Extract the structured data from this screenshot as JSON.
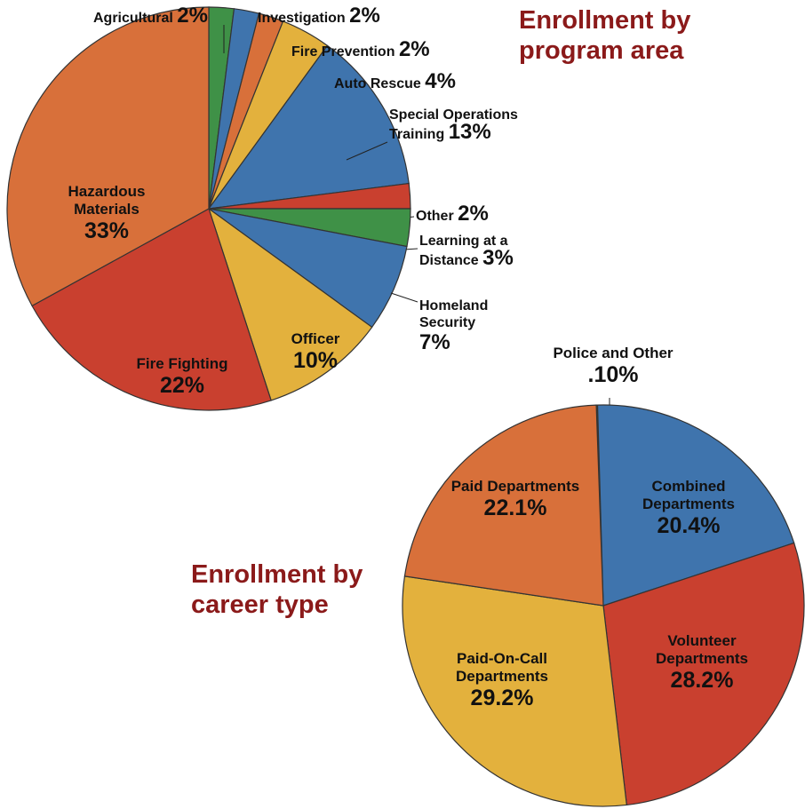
{
  "chart_data": [
    {
      "type": "pie",
      "title": "Enrollment by program area",
      "categories": [
        "Agricultural",
        "Investigation",
        "Fire Prevention",
        "Auto Rescue",
        "Special Operations Training",
        "Other",
        "Learning at a Distance",
        "Homeland Security",
        "Officer",
        "Fire Fighting",
        "Hazardous Materials"
      ],
      "values": [
        2,
        2,
        2,
        4,
        13,
        2,
        3,
        7,
        10,
        22,
        33
      ],
      "value_labels": [
        "2%",
        "2%",
        "2%",
        "4%",
        "13%",
        "2%",
        "3%",
        "7%",
        "10%",
        "22%",
        "33%"
      ],
      "colors": [
        "#3f9147",
        "#3f74ad",
        "#d8703a",
        "#e3b13d",
        "#3f74ad",
        "#c9402f",
        "#3f9147",
        "#3f74ad",
        "#e3b13d",
        "#c9402f",
        "#d8703a"
      ]
    },
    {
      "type": "pie",
      "title": "Enrollment by career type",
      "categories": [
        "Police and Other",
        "Combined Departments",
        "Volunteer Departments",
        "Paid-On-Call Departments",
        "Paid Departments"
      ],
      "values": [
        0.1,
        20.4,
        28.2,
        29.2,
        22.1
      ],
      "value_labels": [
        ".10%",
        "20.4%",
        "28.2%",
        "29.2%",
        "22.1%"
      ],
      "colors": [
        "#3f9147",
        "#3f74ad",
        "#c9402f",
        "#e3b13d",
        "#d8703a"
      ]
    }
  ]
}
